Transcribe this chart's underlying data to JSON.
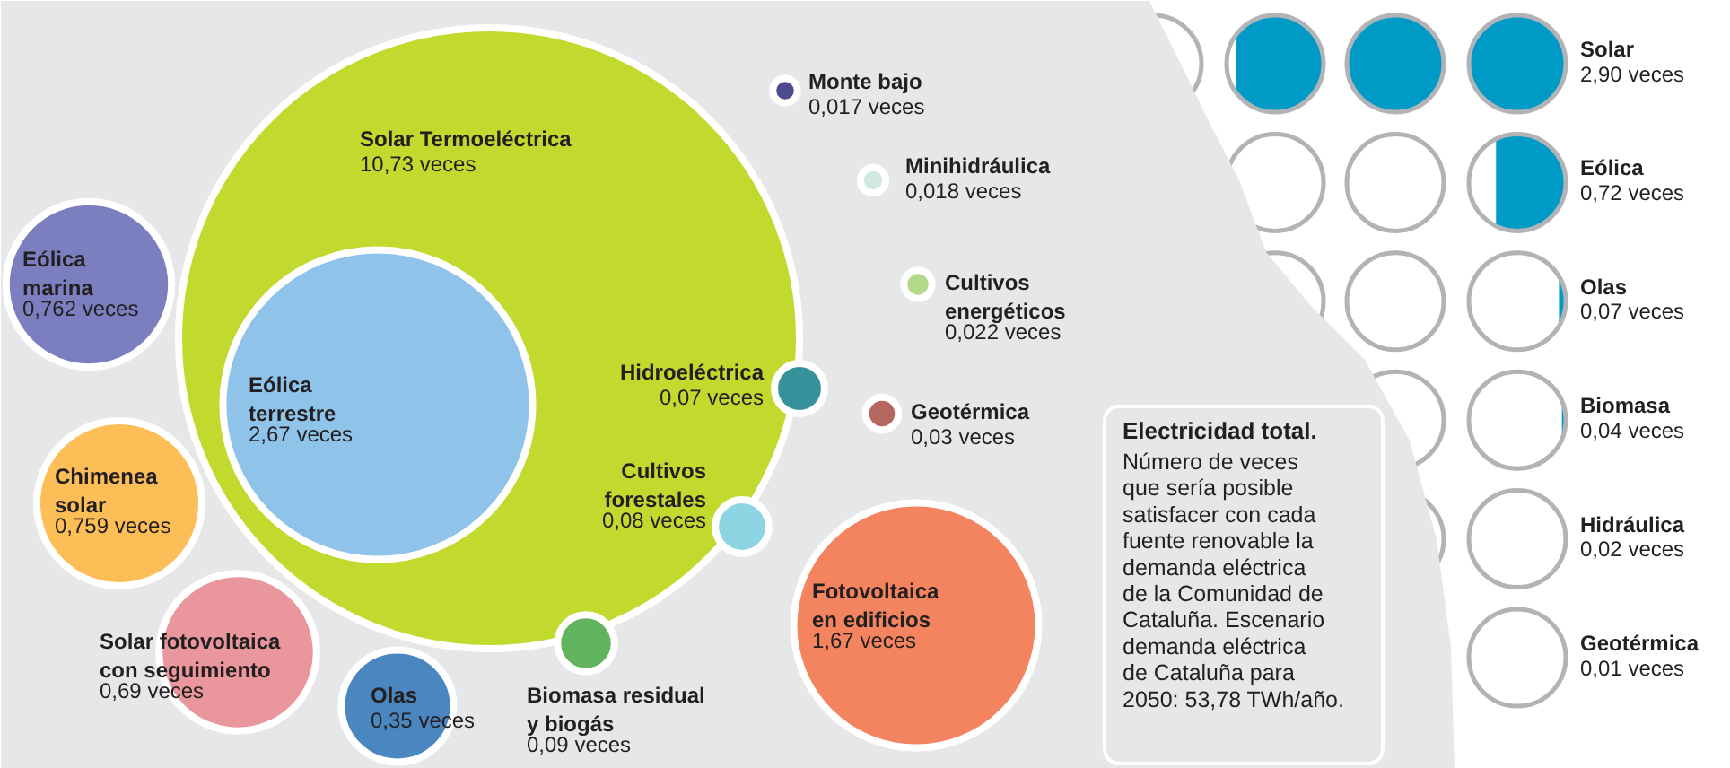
{
  "chart_data": [
    {
      "type": "other",
      "title": "Electricidad total.",
      "subtitle": "Número de veces\nque sería posible\nsatisfacer con cada\nfuente renovable la\ndemanda eléctrica\nde la Comunidad de\nCataluña. Escenario\ndemanda eléctrica\nde Cataluña para\n2050: 53,78 TWh/año.",
      "categories": [
        "Solar Termoeléctrica",
        "Eólica\nterrestre",
        "Eólica\nmarina",
        "Chimenea\nsolar",
        "Solar fotovoltaica\ncon seguimiento",
        "Olas",
        "Biomasa residual\ny biogás",
        "Cultivos\nforestales",
        "Hidroeléctrica",
        "Monte bajo",
        "Minihidráulica",
        "Cultivos\nenergéticos",
        "Geotérmica",
        "Fotovoltaica\nen edificios"
      ],
      "values": [
        10.73,
        2.67,
        0.762,
        0.759,
        0.69,
        0.35,
        0.09,
        0.08,
        0.07,
        0.017,
        0.018,
        0.022,
        0.03,
        1.67
      ],
      "value_labels": [
        "10,73 veces",
        "2,67 veces",
        "0,762 veces",
        "0,759 veces",
        "0,69 veces",
        "0,35 veces",
        "0,09 veces",
        "0,08 veces",
        "0,07 veces",
        "0,017 veces",
        "0,018 veces",
        "0,022 veces",
        "0,03 veces",
        "1,67 veces"
      ],
      "colors": [
        "#c2d92e",
        "#8fc3ea",
        "#7b7fc0",
        "#fdbe57",
        "#e9969c",
        "#4a86c0",
        "#62b35e",
        "#8dd5e2",
        "#35919a",
        "#4e4a8f",
        "#cfe8e2",
        "#b3d98a",
        "#b5675f",
        "#f4845f"
      ]
    },
    {
      "type": "other",
      "categories": [
        "Solar",
        "Eólica",
        "Olas",
        "Biomasa",
        "Hidráulica",
        "Geotérmica"
      ],
      "values": [
        2.9,
        0.72,
        0.07,
        0.04,
        0.02,
        0.01
      ],
      "value_labels": [
        "2,90 veces",
        "0,72 veces",
        "0,07 veces",
        "0,04 veces",
        "0,02 veces",
        "0,01 veces"
      ],
      "colors": [
        "#009ac7",
        "#009ac7",
        "#009ac7",
        "#009ac7",
        "#009ac7",
        "#009ac7"
      ]
    }
  ]
}
